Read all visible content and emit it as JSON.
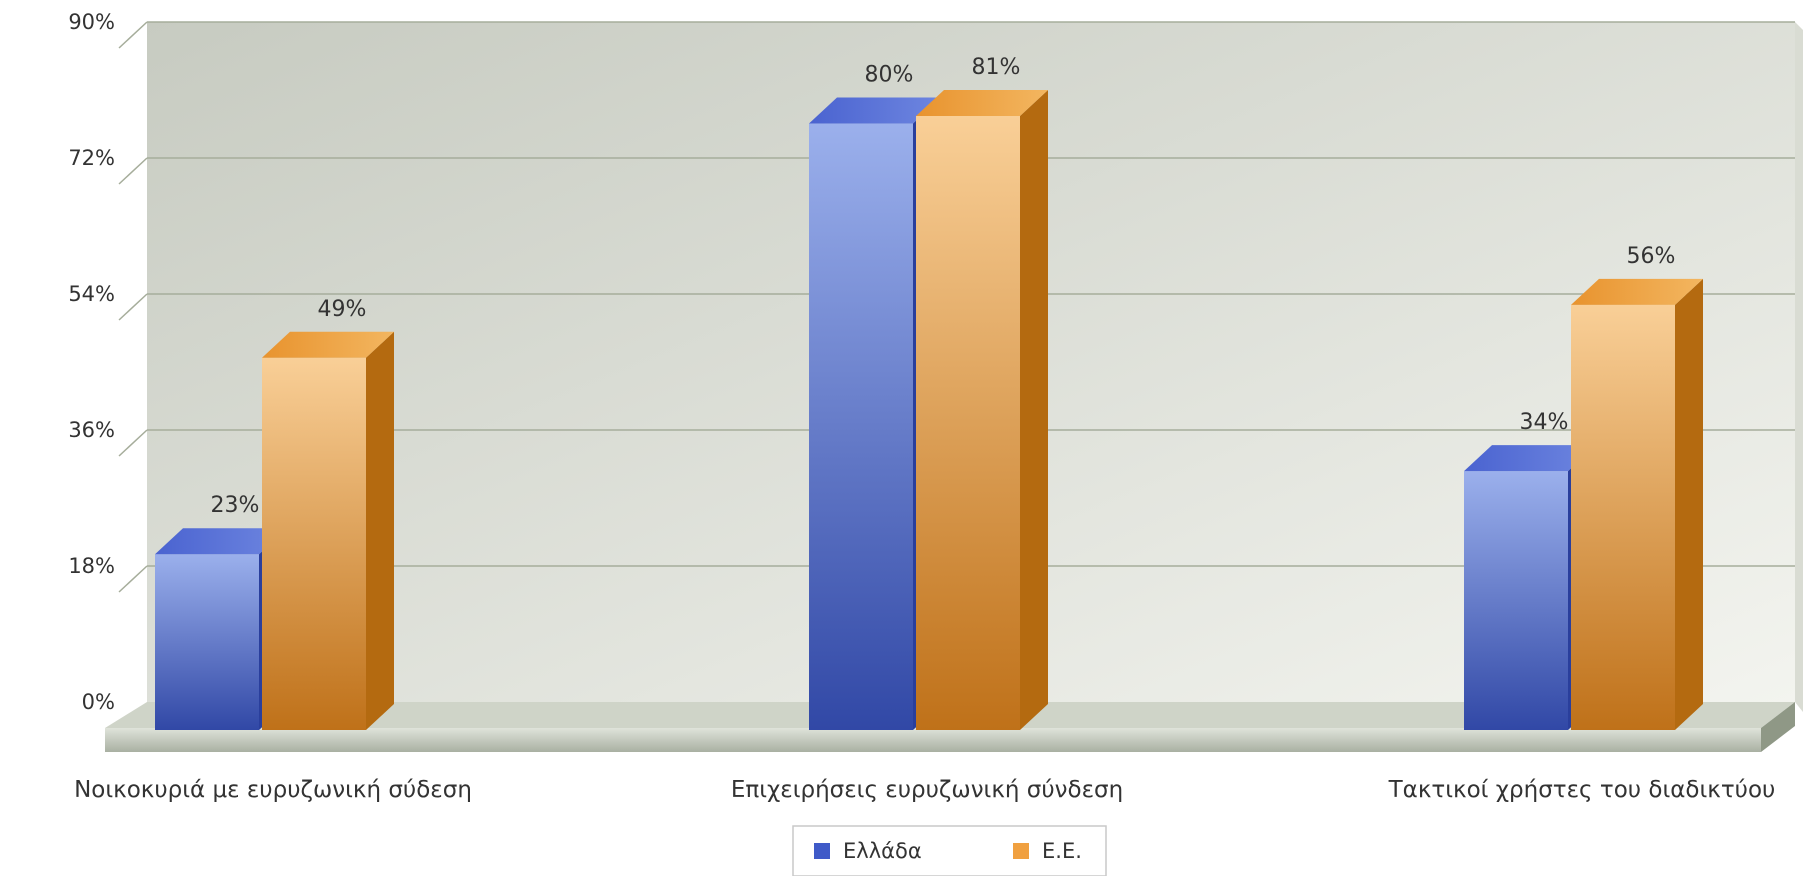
{
  "chart_data": {
    "type": "bar",
    "categories": [
      "Νοικοκυριά με ευρυζωνική σύδεση",
      "Επιχειρήσεις ευρυζωνική σύνδεση",
      "Τακτικοί χρήστες του διαδικτύου"
    ],
    "series": [
      {
        "name": "Ελλάδα",
        "values": [
          23,
          80,
          34
        ],
        "labels": [
          "23%",
          "80%",
          "34%"
        ],
        "color": "#4a62c8"
      },
      {
        "name": "Ε.Ε.",
        "values": [
          49,
          81,
          56
        ],
        "labels": [
          "49%",
          "81%",
          "56%"
        ],
        "color": "#f0a040"
      }
    ],
    "ylim": [
      0,
      90
    ],
    "y_ticks": [
      0,
      18,
      36,
      54,
      72,
      90
    ],
    "y_tick_labels": [
      "0%",
      "18%",
      "36%",
      "54%",
      "72%",
      "90%"
    ],
    "grid": true,
    "legend_position": "bottom-center",
    "style": "3d-columns"
  }
}
